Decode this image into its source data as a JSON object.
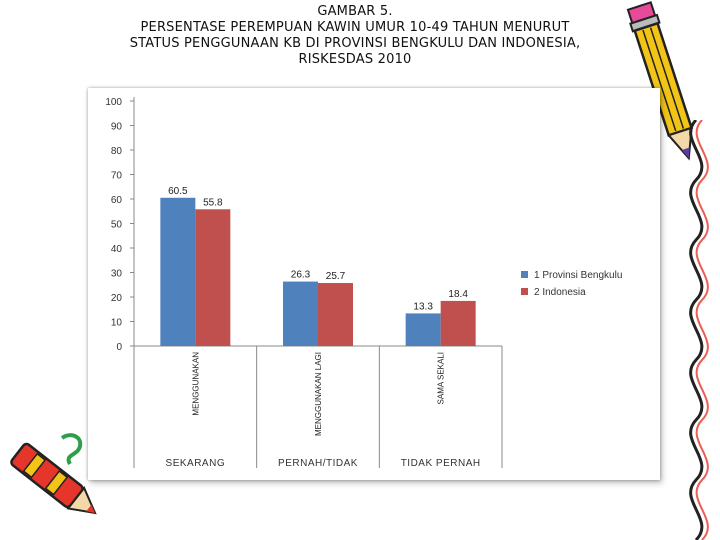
{
  "title": {
    "line1": "GAMBAR 5.",
    "line2": "PERSENTASE PEREMPUAN KAWIN UMUR 10-49 TAHUN MENURUT",
    "line3": "STATUS PENGGUNAAN KB DI PROVINSI BENGKULU DAN INDONESIA,",
    "line4": "RISKESDAS 2010"
  },
  "chart_data": {
    "type": "bar",
    "categories": [
      "MENGGUNAKAN",
      "MENGGUNAKAN LAGI",
      "SAMA SEKALI"
    ],
    "category_groups": [
      "SEKARANG",
      "PERNAH/TIDAK",
      "TIDAK PERNAH"
    ],
    "series": [
      {
        "name": "1 Provinsi Bengkulu",
        "values": [
          60.5,
          26.3,
          13.3
        ],
        "color": "#4F81BD"
      },
      {
        "name": "2 Indonesia",
        "values": [
          55.8,
          25.7,
          18.4
        ],
        "color": "#C0504D"
      }
    ],
    "data_labels": [
      [
        "60.5",
        "26.3",
        "13.3"
      ],
      [
        "55.8",
        "25.7",
        "18.4"
      ]
    ],
    "y_ticks": [
      "0",
      "10",
      "20",
      "30",
      "40",
      "50",
      "60",
      "70",
      "80",
      "90",
      "100"
    ],
    "ylim": [
      0,
      100
    ],
    "grid": false,
    "legend_position": "right"
  },
  "decor": {
    "pencil_color": "#F2C417",
    "accent_color": "#E6352B"
  }
}
